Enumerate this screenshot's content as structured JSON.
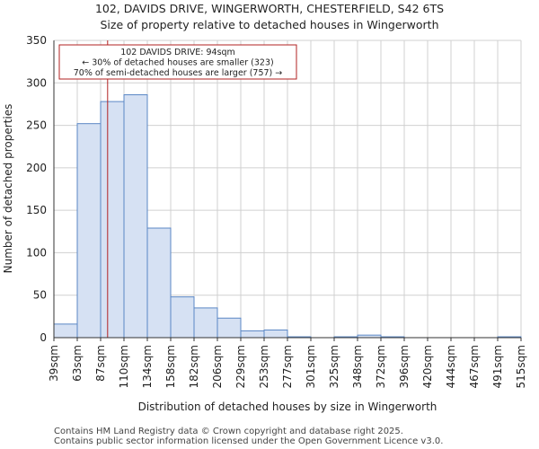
{
  "chart_data": {
    "type": "bar",
    "title_line1": "102, DAVIDS DRIVE, WINGERWORTH, CHESTERFIELD, S42 6TS",
    "title_line2": "Size of property relative to detached houses in Wingerworth",
    "xlabel": "Distribution of detached houses by size in Wingerworth",
    "ylabel": "Number of detached properties",
    "ylim": [
      0,
      350
    ],
    "yticks": [
      0,
      50,
      100,
      150,
      200,
      250,
      300,
      350
    ],
    "tick_labels": [
      "39sqm",
      "63sqm",
      "87sqm",
      "110sqm",
      "134sqm",
      "158sqm",
      "182sqm",
      "206sqm",
      "229sqm",
      "253sqm",
      "277sqm",
      "301sqm",
      "325sqm",
      "348sqm",
      "372sqm",
      "396sqm",
      "420sqm",
      "444sqm",
      "467sqm",
      "491sqm",
      "515sqm"
    ],
    "values": [
      16,
      252,
      278,
      286,
      129,
      48,
      35,
      23,
      8,
      9,
      1,
      0,
      1,
      3,
      1,
      0,
      0,
      0,
      0,
      1
    ],
    "property_marker": {
      "value_bin_position": 2.3
    },
    "annotation": {
      "line1": "102 DAVIDS DRIVE: 94sqm",
      "line2": "← 30% of detached houses are smaller (323)",
      "line3": "70% of semi-detached houses are larger (757) →"
    },
    "colors": {
      "bar_fill": "#d6e1f3",
      "bar_edge": "#5b87c5",
      "marker": "#b22222",
      "grid": "#d0d0d0"
    },
    "grid": true
  },
  "footer": {
    "line1": "Contains HM Land Registry data © Crown copyright and database right 2025.",
    "line2": "Contains public sector information licensed under the Open Government Licence v3.0."
  }
}
